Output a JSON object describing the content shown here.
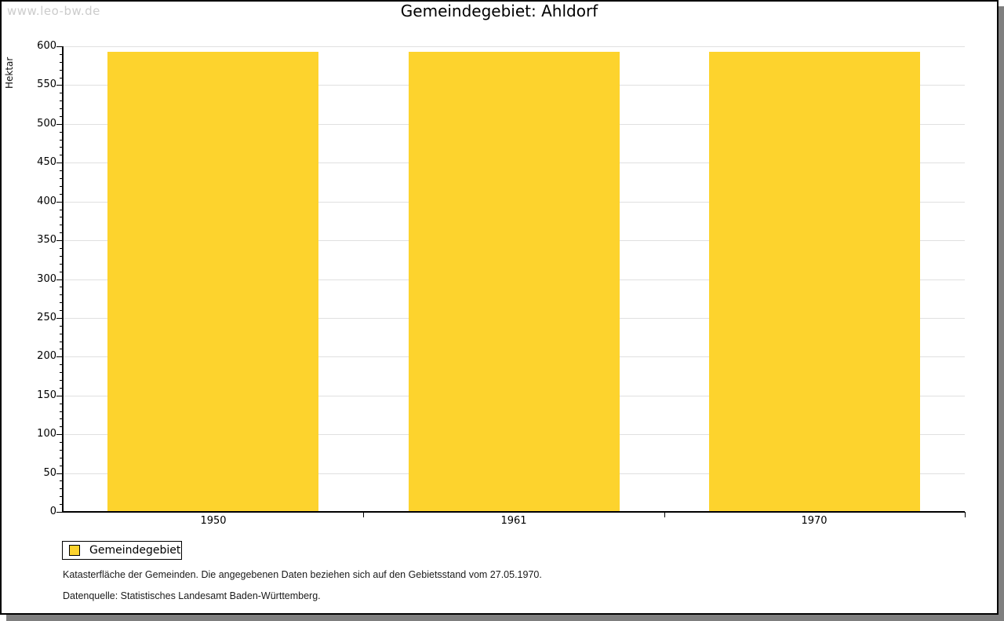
{
  "watermark": "www.leo-bw.de",
  "header": {
    "title": "Gemeindegebiet: Ahldorf"
  },
  "chart_data": {
    "type": "bar",
    "title": "Gemeindegebiet: Ahldorf",
    "categories": [
      "1950",
      "1961",
      "1970"
    ],
    "values": [
      593,
      593,
      593
    ],
    "series_name": "Gemeindegebiet",
    "xlabel": "",
    "ylabel": "Hektar",
    "ylim": [
      0,
      600
    ],
    "y_major_step": 50,
    "y_minor_step": 10,
    "grid": true,
    "legend_position": "bottom-left",
    "bar_color": "#FDD32D"
  },
  "legend": {
    "items": [
      {
        "label": "Gemeindegebiet",
        "color": "#FDD32D"
      }
    ]
  },
  "footnotes": [
    "Katasterfläche der Gemeinden. Die angegebenen Daten beziehen sich auf den Gebietsstand vom 27.05.1970.",
    "Datenquelle: Statistisches Landesamt Baden-Württemberg."
  ],
  "colors": {
    "bar": "#FDD32D",
    "grid": "#e0e0e0",
    "axis": "#000000",
    "watermark": "#cccccc",
    "shadow": "#7f7f7f"
  }
}
